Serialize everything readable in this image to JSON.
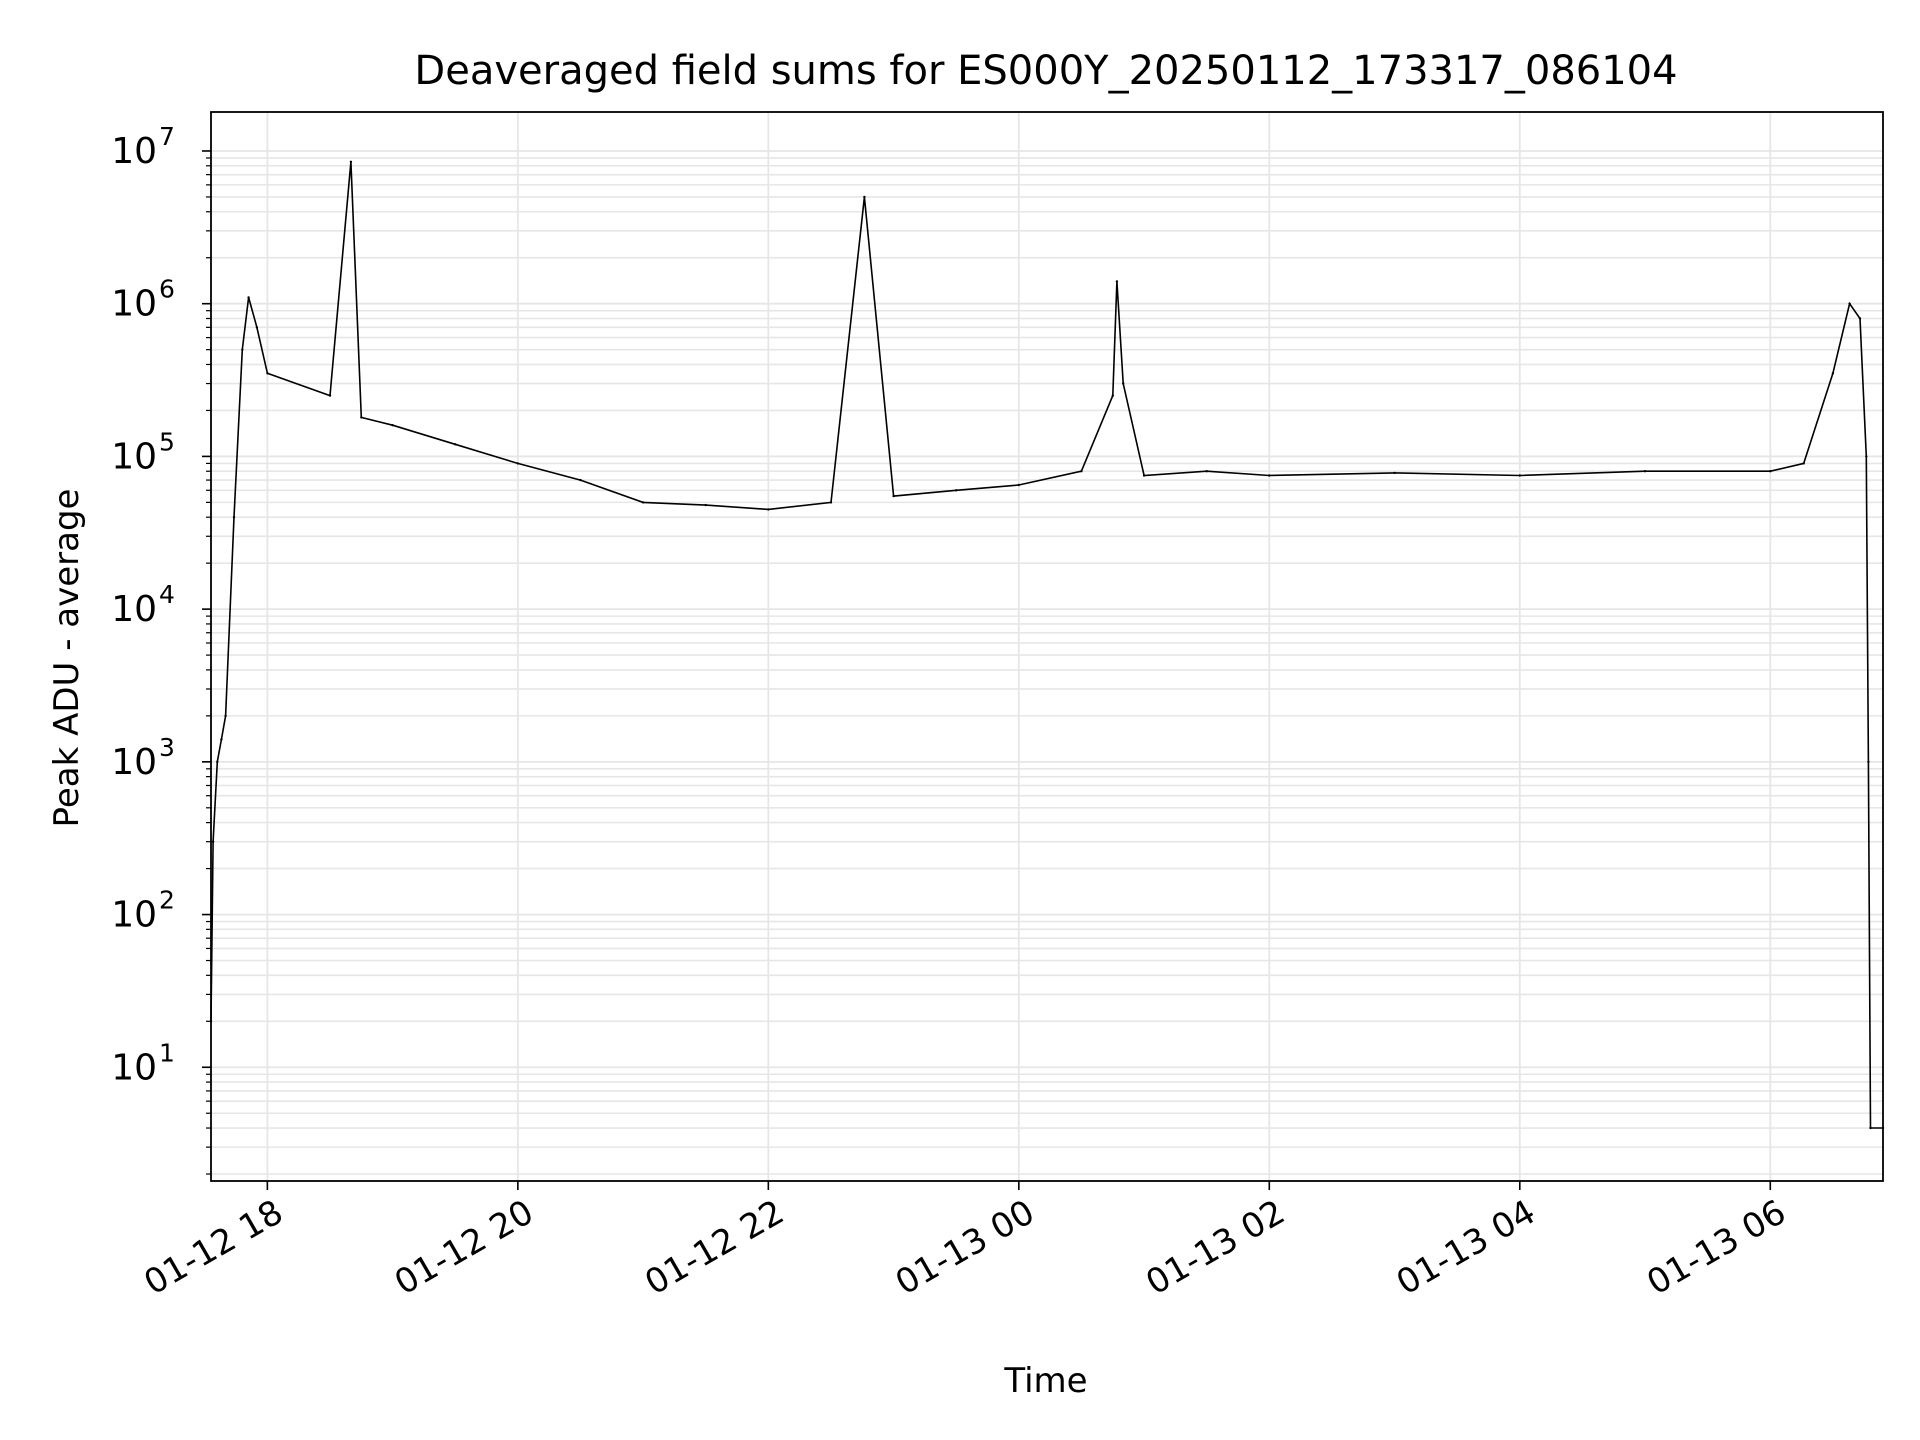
{
  "chart_data": {
    "type": "line",
    "title": "Deaveraged field sums for ES000Y_20250112_173317_086104",
    "xlabel": "Time",
    "ylabel": "Peak ADU - average",
    "yscale": "log",
    "ylim": [
      1.8,
      18000000
    ],
    "xlim": [
      "2025-01-12 17:33",
      "2025-01-13 06:54"
    ],
    "grid": {
      "major": true,
      "minor": true
    },
    "line_color": "#000000",
    "grid_color": "#e6e6e6",
    "x_ticks": [
      {
        "t": "2025-01-12 18:00",
        "label": "01-12 18"
      },
      {
        "t": "2025-01-12 20:00",
        "label": "01-12 20"
      },
      {
        "t": "2025-01-12 22:00",
        "label": "01-12 22"
      },
      {
        "t": "2025-01-13 00:00",
        "label": "01-13 00"
      },
      {
        "t": "2025-01-13 02:00",
        "label": "01-13 02"
      },
      {
        "t": "2025-01-13 04:00",
        "label": "01-13 04"
      },
      {
        "t": "2025-01-13 06:00",
        "label": "01-13 06"
      }
    ],
    "y_ticks": [
      {
        "value": 10,
        "base": "10",
        "exp": "1"
      },
      {
        "value": 100,
        "base": "10",
        "exp": "2"
      },
      {
        "value": 1000,
        "base": "10",
        "exp": "3"
      },
      {
        "value": 10000,
        "base": "10",
        "exp": "4"
      },
      {
        "value": 100000,
        "base": "10",
        "exp": "5"
      },
      {
        "value": 1000000,
        "base": "10",
        "exp": "6"
      },
      {
        "value": 10000000,
        "base": "10",
        "exp": "7"
      }
    ],
    "series": [
      {
        "points": [
          [
            "2025-01-12 17:33",
            20
          ],
          [
            "2025-01-12 17:34",
            300
          ],
          [
            "2025-01-12 17:36",
            1000
          ],
          [
            "2025-01-12 17:38",
            1400
          ],
          [
            "2025-01-12 17:40",
            2000
          ],
          [
            "2025-01-12 17:44",
            40000
          ],
          [
            "2025-01-12 17:48",
            500000
          ],
          [
            "2025-01-12 17:51",
            1100000
          ],
          [
            "2025-01-12 17:55",
            700000
          ],
          [
            "2025-01-12 18:00",
            350000
          ],
          [
            "2025-01-12 18:30",
            250000
          ],
          [
            "2025-01-12 18:40",
            8500000
          ],
          [
            "2025-01-12 18:45",
            180000
          ],
          [
            "2025-01-12 19:00",
            160000
          ],
          [
            "2025-01-12 19:30",
            120000
          ],
          [
            "2025-01-12 20:00",
            90000
          ],
          [
            "2025-01-12 20:30",
            70000
          ],
          [
            "2025-01-12 21:00",
            50000
          ],
          [
            "2025-01-12 21:30",
            48000
          ],
          [
            "2025-01-12 22:00",
            45000
          ],
          [
            "2025-01-12 22:30",
            50000
          ],
          [
            "2025-01-12 22:46",
            5000000
          ],
          [
            "2025-01-12 23:00",
            55000
          ],
          [
            "2025-01-12 23:30",
            60000
          ],
          [
            "2025-01-13 00:00",
            65000
          ],
          [
            "2025-01-13 00:30",
            80000
          ],
          [
            "2025-01-13 00:45",
            250000
          ],
          [
            "2025-01-13 00:47",
            1400000
          ],
          [
            "2025-01-13 00:50",
            300000
          ],
          [
            "2025-01-13 01:00",
            75000
          ],
          [
            "2025-01-13 01:30",
            80000
          ],
          [
            "2025-01-13 02:00",
            75000
          ],
          [
            "2025-01-13 03:00",
            78000
          ],
          [
            "2025-01-13 04:00",
            75000
          ],
          [
            "2025-01-13 05:00",
            80000
          ],
          [
            "2025-01-13 06:00",
            80000
          ],
          [
            "2025-01-13 06:16",
            90000
          ],
          [
            "2025-01-13 06:30",
            350000
          ],
          [
            "2025-01-13 06:38",
            1000000
          ],
          [
            "2025-01-13 06:43",
            800000
          ],
          [
            "2025-01-13 06:46",
            100000
          ],
          [
            "2025-01-13 06:47",
            1000
          ],
          [
            "2025-01-13 06:48",
            4
          ],
          [
            "2025-01-13 06:54",
            4
          ]
        ]
      }
    ]
  }
}
